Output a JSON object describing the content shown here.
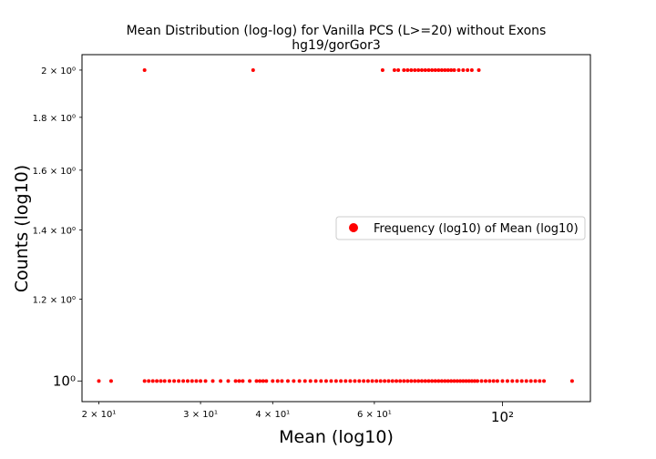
{
  "chart_data": {
    "type": "scatter",
    "title": "Mean Distribution (log-log) for Vanilla PCS (L>=20) without Exons",
    "subtitle": "hg19/gorGor3",
    "xlabel": "Mean (log10)",
    "ylabel": "Counts (log10)",
    "x_scale": "log",
    "y_scale": "log",
    "xlim": [
      18.7,
      142
    ],
    "ylim": [
      0.955,
      2.07
    ],
    "grid": false,
    "legend_position": "center-right",
    "x_ticks": [
      {
        "value": 20,
        "label": "2 × 10¹"
      },
      {
        "value": 30,
        "label": "3 × 10¹"
      },
      {
        "value": 40,
        "label": "4 × 10¹"
      },
      {
        "value": 60,
        "label": "6 × 10¹"
      },
      {
        "value": 100,
        "label": "10²"
      }
    ],
    "y_ticks": [
      {
        "value": 1.0,
        "label": "10⁰"
      },
      {
        "value": 1.2,
        "label": "1.2 × 10⁰"
      },
      {
        "value": 1.4,
        "label": "1.4 × 10⁰"
      },
      {
        "value": 1.6,
        "label": "1.6 × 10⁰"
      },
      {
        "value": 1.8,
        "label": "1.8 × 10⁰"
      },
      {
        "value": 2.0,
        "label": "2 × 10⁰"
      }
    ],
    "series": [
      {
        "name": "Frequency (log10) of Mean (log10)",
        "color": "#ff0000",
        "x": [
          20.0,
          21.0,
          24.0,
          24.4,
          24.8,
          25.2,
          25.6,
          26.0,
          26.5,
          27.0,
          27.5,
          28.0,
          28.5,
          29.0,
          29.5,
          30.0,
          30.6,
          31.5,
          32.5,
          33.5,
          34.5,
          35.0,
          35.5,
          36.5,
          37.5,
          38.0,
          38.5,
          39.0,
          40.0,
          40.8,
          41.5,
          42.5,
          43.5,
          44.5,
          45.5,
          46.5,
          47.5,
          48.5,
          49.5,
          50.5,
          51.5,
          52.5,
          53.5,
          54.5,
          55.5,
          56.5,
          57.5,
          58.5,
          59.5,
          60.5,
          61.5,
          62.5,
          63.5,
          64.5,
          65.5,
          66.5,
          67.5,
          68.5,
          69.5,
          70.5,
          71.5,
          72.5,
          73.5,
          74.5,
          75.5,
          76.5,
          77.5,
          78.5,
          79.5,
          80.5,
          81.5,
          82.5,
          83.5,
          84.5,
          85.5,
          86.5,
          87.5,
          88.5,
          89.5,
          90.5,
          92.0,
          93.5,
          95.0,
          96.5,
          98.0,
          100.0,
          102.0,
          104.0,
          106.0,
          108.0,
          110.0,
          112.0,
          114.0,
          116.0,
          118.0,
          132.0,
          24.0,
          37.0,
          62.0,
          65.0,
          66.0,
          67.5,
          68.5,
          69.5,
          70.5,
          71.5,
          72.5,
          73.5,
          74.5,
          75.5,
          76.5,
          77.5,
          78.5,
          79.5,
          80.5,
          81.5,
          82.5,
          84.0,
          85.5,
          87.0,
          88.5,
          91.0
        ],
        "y": [
          1,
          1,
          1,
          1,
          1,
          1,
          1,
          1,
          1,
          1,
          1,
          1,
          1,
          1,
          1,
          1,
          1,
          1,
          1,
          1,
          1,
          1,
          1,
          1,
          1,
          1,
          1,
          1,
          1,
          1,
          1,
          1,
          1,
          1,
          1,
          1,
          1,
          1,
          1,
          1,
          1,
          1,
          1,
          1,
          1,
          1,
          1,
          1,
          1,
          1,
          1,
          1,
          1,
          1,
          1,
          1,
          1,
          1,
          1,
          1,
          1,
          1,
          1,
          1,
          1,
          1,
          1,
          1,
          1,
          1,
          1,
          1,
          1,
          1,
          1,
          1,
          1,
          1,
          1,
          1,
          1,
          1,
          1,
          1,
          1,
          1,
          1,
          1,
          1,
          1,
          1,
          1,
          1,
          1,
          1,
          1,
          2,
          2,
          2,
          2,
          2,
          2,
          2,
          2,
          2,
          2,
          2,
          2,
          2,
          2,
          2,
          2,
          2,
          2,
          2,
          2,
          2,
          2,
          2,
          2,
          2,
          2
        ]
      }
    ]
  }
}
